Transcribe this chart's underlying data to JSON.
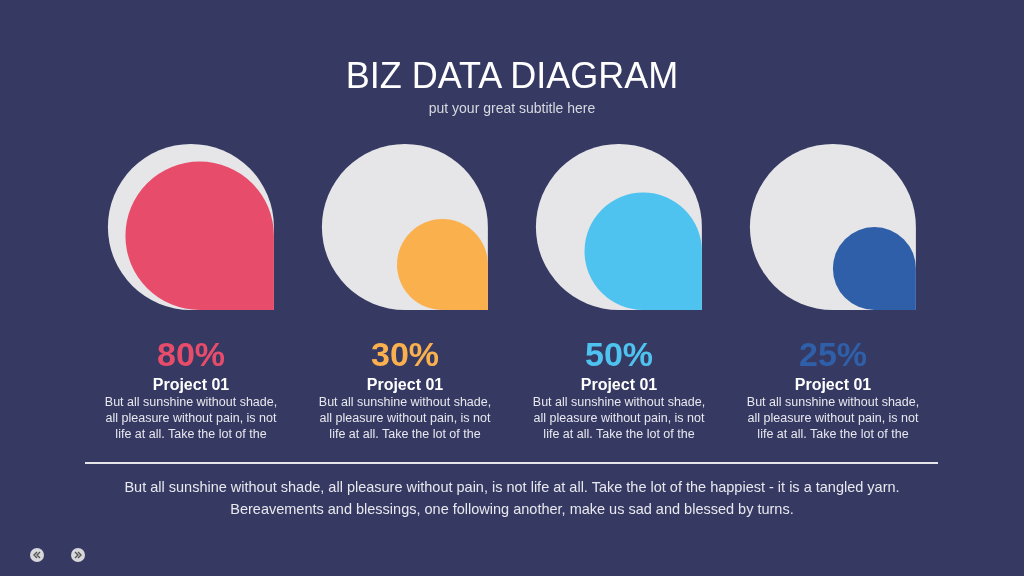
{
  "chart_data": {
    "type": "other",
    "title": "BIZ DATA DIAGRAM",
    "subtitle": "put your great subtitle here",
    "categories": [
      "Project 01",
      "Project 01",
      "Project 01",
      "Project 01"
    ],
    "values": [
      80,
      30,
      50,
      25
    ],
    "colors": [
      "#e84c6b",
      "#fbb04e",
      "#4fc3f0",
      "#2f5fa8"
    ],
    "value_labels": [
      "80%",
      "30%",
      "50%",
      "25%"
    ],
    "annotations": [
      "But all sunshine without shade, all pleasure without pain, is not life at all. Take the lot of the",
      "But all sunshine without shade, all pleasure without pain, is not life at all. Take the lot of the",
      "But all sunshine without shade, all pleasure without pain, is not life at all. Take the lot of the",
      "But all sunshine without shade, all pleasure without pain, is not life at all. Take the lot of the",
      "But all sunshine without shade, all pleasure without pain, is not life at all. Take the lot of the happiest - it is a tangled yarn. Bereavements and blessings, one following another, make us sad and blessed by turns."
    ]
  }
}
